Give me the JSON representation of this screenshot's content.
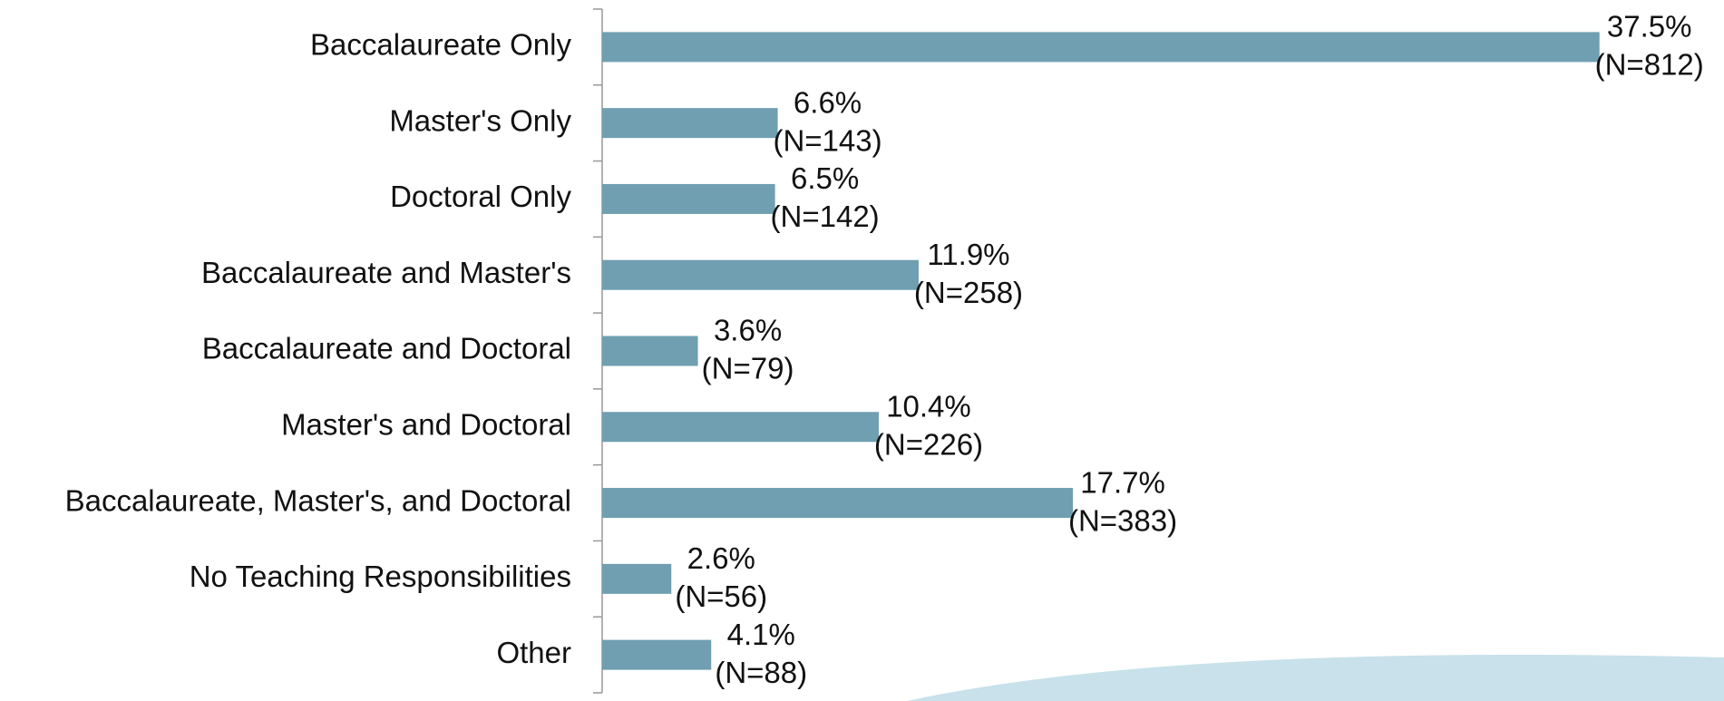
{
  "chart_data": {
    "type": "hbar",
    "categories": [
      "Baccalaureate Only",
      "Master's Only",
      "Doctoral Only",
      "Baccalaureate and Master's",
      "Baccalaureate and Doctoral",
      "Master's and Doctoral",
      "Baccalaureate, Master's, and Doctoral",
      "No Teaching Responsibilities",
      "Other"
    ],
    "values": [
      37.5,
      6.6,
      6.5,
      11.9,
      3.6,
      10.4,
      17.7,
      2.6,
      4.1
    ],
    "value_labels": [
      "37.5%",
      "6.6%",
      "6.5%",
      "11.9%",
      "3.6%",
      "10.4%",
      "17.7%",
      "2.6%",
      "4.1%"
    ],
    "counts": [
      812,
      143,
      142,
      258,
      79,
      226,
      383,
      56,
      88
    ],
    "count_labels": [
      "(N=812)",
      "(N=143)",
      "(N=142)",
      "(N=258)",
      "(N=79)",
      "(N=226)",
      "(N=383)",
      "(N=56)",
      "(N=88)"
    ],
    "color": "#6f9fb0",
    "xlim": [
      0,
      40
    ]
  }
}
